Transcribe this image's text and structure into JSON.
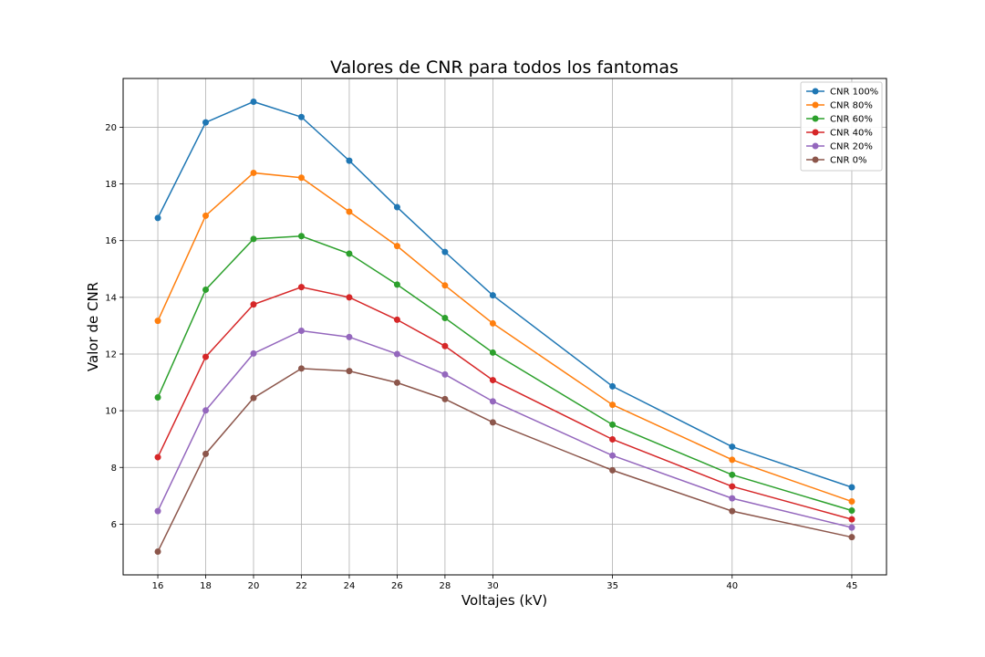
{
  "chart_data": {
    "type": "line",
    "title": "Valores de CNR para todos los fantomas",
    "xlabel": "Voltajes (kV)",
    "ylabel": "Valor de CNR",
    "x": [
      16,
      18,
      20,
      22,
      24,
      26,
      28,
      30,
      35,
      40,
      45
    ],
    "xticks": [
      16,
      18,
      20,
      22,
      24,
      26,
      28,
      30,
      35,
      40,
      45
    ],
    "yticks": [
      6,
      8,
      10,
      12,
      14,
      16,
      18,
      20
    ],
    "xlim": [
      14.55,
      46.45
    ],
    "ylim": [
      4.21,
      21.72
    ],
    "grid": true,
    "legend_position": "top-right",
    "series": [
      {
        "name": "CNR 100%",
        "color": "#1f77b4",
        "values": [
          16.8,
          20.17,
          20.9,
          20.36,
          18.82,
          17.18,
          15.6,
          14.07,
          10.86,
          8.73,
          7.3
        ]
      },
      {
        "name": "CNR 80%",
        "color": "#ff7f0e",
        "values": [
          13.17,
          16.88,
          18.39,
          18.22,
          17.02,
          15.81,
          14.42,
          13.08,
          10.21,
          8.27,
          6.8
        ]
      },
      {
        "name": "CNR 60%",
        "color": "#2ca02c",
        "values": [
          10.47,
          14.27,
          16.06,
          16.16,
          15.54,
          14.45,
          13.27,
          12.05,
          9.51,
          7.74,
          6.48
        ]
      },
      {
        "name": "CNR 40%",
        "color": "#d62728",
        "values": [
          8.36,
          11.9,
          13.75,
          14.36,
          14.0,
          13.21,
          12.28,
          11.08,
          8.99,
          7.33,
          6.17
        ]
      },
      {
        "name": "CNR 20%",
        "color": "#9467bd",
        "values": [
          6.46,
          10.01,
          12.02,
          12.82,
          12.6,
          12.0,
          11.28,
          10.33,
          8.42,
          6.91,
          5.88
        ]
      },
      {
        "name": "CNR 0%",
        "color": "#8c564b",
        "values": [
          5.03,
          8.48,
          10.45,
          11.49,
          11.4,
          10.99,
          10.41,
          9.59,
          7.9,
          6.46,
          5.54
        ]
      }
    ]
  }
}
